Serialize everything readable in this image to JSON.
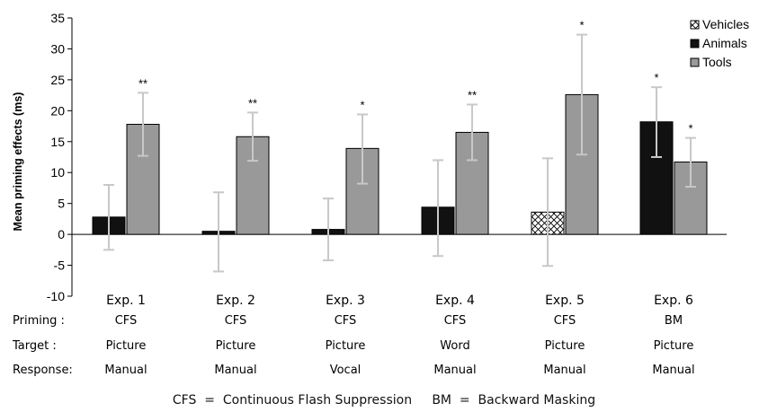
{
  "chart_data": {
    "type": "bar",
    "ylabel": "Mean priming effects (ms)",
    "ylim": [
      -10,
      35
    ],
    "yticks": [
      -10,
      -5,
      0,
      5,
      10,
      15,
      20,
      25,
      30,
      35
    ],
    "categories": [
      "Exp. 1",
      "Exp. 2",
      "Exp. 3",
      "Exp. 4",
      "Exp. 5",
      "Exp. 6"
    ],
    "legend": [
      "Vehicles",
      "Animals",
      "Tools"
    ],
    "legend_position": "top-right",
    "row_headers": [
      "Priming :",
      "Target :",
      "Response:"
    ],
    "rows": [
      [
        "CFS",
        "CFS",
        "CFS",
        "CFS",
        "CFS",
        "BM"
      ],
      [
        "Picture",
        "Picture",
        "Picture",
        "Word",
        "Picture",
        "Picture"
      ],
      [
        "Manual",
        "Manual",
        "Vocal",
        "Manual",
        "Manual",
        "Manual"
      ]
    ],
    "bars": [
      {
        "exp": 0,
        "series": "Animals",
        "value": 2.8,
        "err_low": -2.5,
        "err_high": 8.0,
        "sig": ""
      },
      {
        "exp": 0,
        "series": "Tools",
        "value": 17.8,
        "err_low": 12.7,
        "err_high": 22.9,
        "sig": "**"
      },
      {
        "exp": 1,
        "series": "Animals",
        "value": 0.5,
        "err_low": -6.0,
        "err_high": 6.8,
        "sig": ""
      },
      {
        "exp": 1,
        "series": "Tools",
        "value": 15.8,
        "err_low": 11.9,
        "err_high": 19.7,
        "sig": "**"
      },
      {
        "exp": 2,
        "series": "Animals",
        "value": 0.8,
        "err_low": -4.2,
        "err_high": 5.8,
        "sig": ""
      },
      {
        "exp": 2,
        "series": "Tools",
        "value": 13.9,
        "err_low": 8.2,
        "err_high": 19.4,
        "sig": "*"
      },
      {
        "exp": 3,
        "series": "Animals",
        "value": 4.4,
        "err_low": -3.5,
        "err_high": 12.0,
        "sig": ""
      },
      {
        "exp": 3,
        "series": "Tools",
        "value": 16.5,
        "err_low": 12.0,
        "err_high": 21.0,
        "sig": "**"
      },
      {
        "exp": 4,
        "series": "Vehicles",
        "value": 3.6,
        "err_low": -5.1,
        "err_high": 12.3,
        "sig": ""
      },
      {
        "exp": 4,
        "series": "Tools",
        "value": 22.6,
        "err_low": 12.9,
        "err_high": 32.3,
        "sig": "*"
      },
      {
        "exp": 5,
        "series": "Animals",
        "value": 18.2,
        "err_low": 12.5,
        "err_high": 23.8,
        "sig": "*"
      },
      {
        "exp": 5,
        "series": "Tools",
        "value": 11.7,
        "err_low": 7.7,
        "err_high": 15.6,
        "sig": "*"
      }
    ],
    "footnote": "CFS  =  Continuous Flash Suppression     BM  =  Backward Masking",
    "colors": {
      "Animals": "#111111",
      "Tools": "#999999",
      "Vehicles": "#ffffff",
      "error_bar": "#c8c8c8"
    }
  }
}
